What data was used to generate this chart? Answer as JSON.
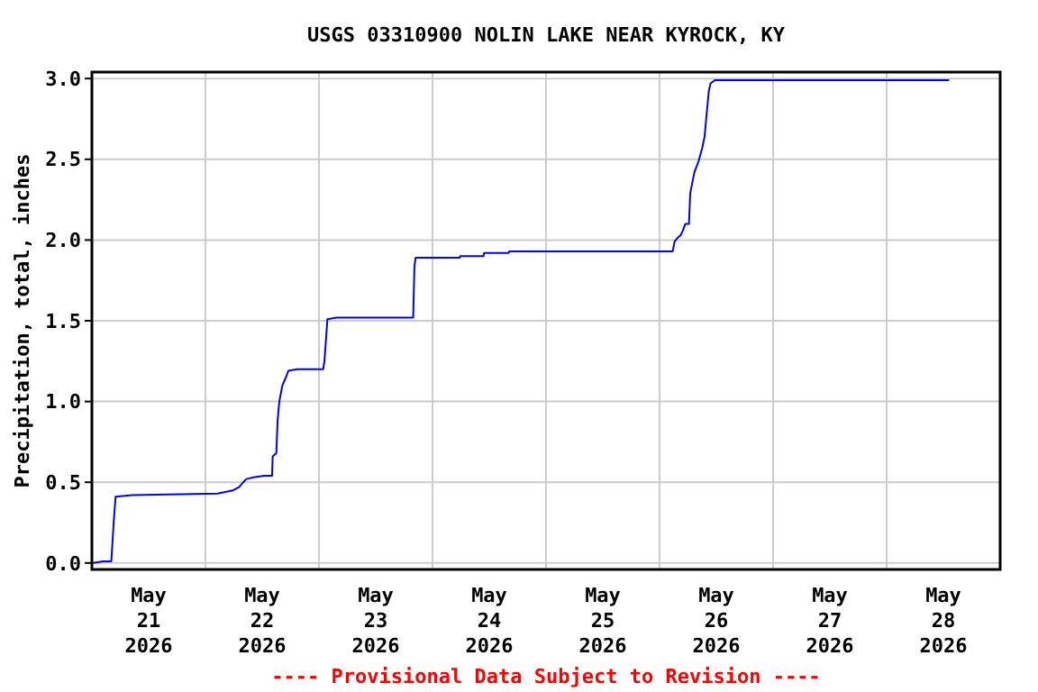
{
  "chart_data": {
    "type": "line",
    "title": "USGS 03310900 NOLIN LAKE NEAR KYROCK, KY",
    "ylabel": "Precipitation, total, inches",
    "annotations": [
      "---- Provisional Data Subject to Revision ----"
    ],
    "x": [
      "2026-05-21T00:15",
      "2026-05-21T02:24",
      "2026-05-21T04:06",
      "2026-05-21T04:36",
      "2026-05-21T05:00",
      "2026-05-21T08:30",
      "2026-05-22T02:33",
      "2026-05-22T05:50",
      "2026-05-22T07:07",
      "2026-05-22T08:00",
      "2026-05-22T08:39",
      "2026-05-22T10:10",
      "2026-05-22T12:27",
      "2026-05-22T14:05",
      "2026-05-22T14:13",
      "2026-05-22T14:59",
      "2026-05-22T15:15",
      "2026-05-22T15:37",
      "2026-05-22T16:16",
      "2026-05-22T16:52",
      "2026-05-22T17:32",
      "2026-05-22T19:26",
      "2026-05-23T00:53",
      "2026-05-23T01:09",
      "2026-05-23T01:24",
      "2026-05-23T01:47",
      "2026-05-23T03:42",
      "2026-05-23T19:55",
      "2026-05-23T20:11",
      "2026-05-23T20:26",
      "2026-05-24T05:43",
      "2026-05-24T05:50",
      "2026-05-24T10:47",
      "2026-05-24T10:54",
      "2026-05-24T16:06",
      "2026-05-24T16:14",
      "2026-05-26T02:47",
      "2026-05-26T03:10",
      "2026-05-26T03:42",
      "2026-05-26T04:28",
      "2026-05-26T04:57",
      "2026-05-26T05:27",
      "2026-05-26T06:13",
      "2026-05-26T06:29",
      "2026-05-26T07:22",
      "2026-05-26T08:16",
      "2026-05-26T09:01",
      "2026-05-26T09:31",
      "2026-05-26T09:55",
      "2026-05-26T10:24",
      "2026-05-26T10:47",
      "2026-05-26T11:41",
      "2026-05-28T13:13"
    ],
    "series": [
      {
        "color": "#0000ff",
        "values": [
          0.0,
          0.01,
          0.01,
          0.25,
          0.41,
          0.42,
          0.43,
          0.45,
          0.47,
          0.5,
          0.52,
          0.53,
          0.54,
          0.54,
          0.66,
          0.68,
          0.88,
          1.0,
          1.1,
          1.14,
          1.19,
          1.2,
          1.2,
          1.25,
          1.35,
          1.51,
          1.52,
          1.52,
          1.84,
          1.89,
          1.89,
          1.9,
          1.9,
          1.92,
          1.92,
          1.93,
          1.93,
          1.99,
          2.01,
          2.03,
          2.06,
          2.1,
          2.1,
          2.29,
          2.42,
          2.49,
          2.57,
          2.64,
          2.77,
          2.92,
          2.97,
          2.99,
          2.99
        ]
      }
    ],
    "xlim": [
      "2026-05-21T00:00",
      "2026-05-29T00:00"
    ],
    "xticks": [
      {
        "value": "2026-05-21T12:00",
        "label": "May\n21\n2026"
      },
      {
        "value": "2026-05-22T00:00",
        "label": null
      },
      {
        "value": "2026-05-22T12:00",
        "label": "May\n22\n2026"
      },
      {
        "value": "2026-05-23T00:00",
        "label": null
      },
      {
        "value": "2026-05-23T12:00",
        "label": "May\n23\n2026"
      },
      {
        "value": "2026-05-24T00:00",
        "label": null
      },
      {
        "value": "2026-05-24T12:00",
        "label": "May\n24\n2026"
      },
      {
        "value": "2026-05-25T00:00",
        "label": null
      },
      {
        "value": "2026-05-25T12:00",
        "label": "May\n25\n2026"
      },
      {
        "value": "2026-05-26T00:00",
        "label": null
      },
      {
        "value": "2026-05-26T12:00",
        "label": "May\n26\n2026"
      },
      {
        "value": "2026-05-27T00:00",
        "label": null
      },
      {
        "value": "2026-05-27T12:00",
        "label": "May\n27\n2026"
      },
      {
        "value": "2026-05-28T00:00",
        "label": null
      },
      {
        "value": "2026-05-28T12:00",
        "label": "May\n28\n2026"
      }
    ],
    "ylim": [
      -0.04,
      3.04
    ],
    "yticks": [
      {
        "value": 0,
        "label": "0.0"
      },
      0.5,
      {
        "value": 1,
        "label": "1.0"
      },
      1.5,
      {
        "value": 2,
        "label": "2.0"
      },
      2.5,
      {
        "value": 3,
        "label": "3.0"
      }
    ],
    "grid": true,
    "marker": "none",
    "line_style": "solid"
  }
}
